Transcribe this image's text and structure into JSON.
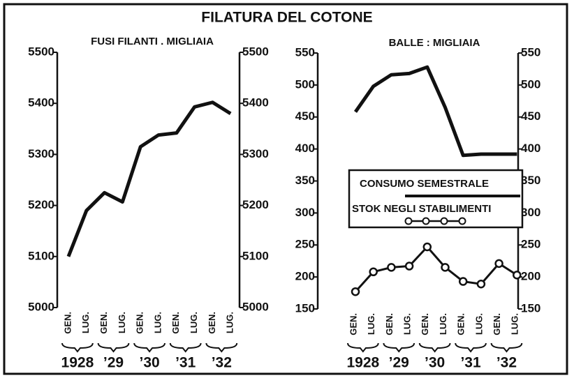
{
  "title": "FILATURA DEL COTONE",
  "chart_data": [
    {
      "type": "line",
      "subtitle": "FUSI FILANTI . MIGLIAIA",
      "categories": [
        "GEN.",
        "LUG.",
        "GEN.",
        "LUG.",
        "GEN.",
        "LUG.",
        "GEN.",
        "LUG.",
        "GEN.",
        "LUG."
      ],
      "groups": [
        "1928",
        "’29",
        "’30",
        "’31",
        "’32"
      ],
      "values": [
        5100,
        5190,
        5225,
        5207,
        5315,
        5338,
        5342,
        5393,
        5402,
        5380
      ],
      "color": "#111111",
      "ylim": [
        5000,
        5500
      ],
      "yticks": [
        5000,
        5100,
        5200,
        5300,
        5400,
        5500
      ]
    },
    {
      "type": "line",
      "subtitle": "BALLE : MIGLIAIA",
      "categories": [
        "GEN.",
        "LUG.",
        "GEN.",
        "LUG.",
        "GEN.",
        "LUG.",
        "GEN.",
        "LUG.",
        "GEN.",
        "LUG."
      ],
      "groups": [
        "1928",
        "’29",
        "’30",
        "’31",
        "’32"
      ],
      "series": [
        {
          "name": "CONSUMO SEMESTRALE",
          "color": "#111111",
          "values": [
            458,
            498,
            516,
            518,
            528,
            465,
            390,
            392,
            392,
            392
          ]
        },
        {
          "name": "STOK NEGLI STABILIMENTI",
          "color": "#111111",
          "markers": true,
          "values": [
            177,
            208,
            215,
            217,
            247,
            215,
            193,
            189,
            221,
            203
          ]
        }
      ],
      "ylim": [
        150,
        550
      ],
      "yticks": [
        150,
        200,
        250,
        300,
        350,
        400,
        450,
        500,
        550
      ]
    }
  ]
}
